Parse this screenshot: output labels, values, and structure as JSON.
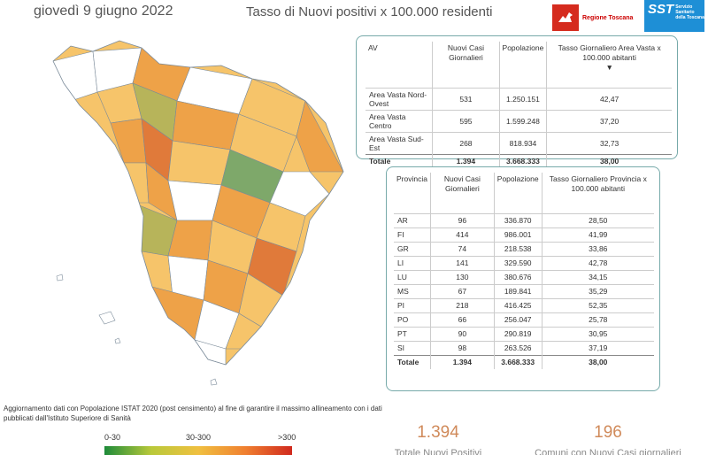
{
  "header": {
    "date": "giovedì 9 giugno 2022",
    "title": "Tasso di Nuovi positivi x 100.000 residenti",
    "logo_rt_text": "Regione Toscana",
    "logo_sst_big": "SST",
    "logo_sst_small": "Servizio Sanitario della Toscana"
  },
  "area_table": {
    "headers": [
      "AV",
      "Nuovi Casi Giornalieri",
      "Popolazione",
      "Tasso Giornaliero Area Vasta x 100.000 abitanti"
    ],
    "rows": [
      [
        "Area Vasta Nord-Ovest",
        "531",
        "1.250.151",
        "42,47"
      ],
      [
        "Area Vasta Centro",
        "595",
        "1.599.248",
        "37,20"
      ],
      [
        "Area Vasta Sud-Est",
        "268",
        "818.934",
        "32,73"
      ]
    ],
    "total": [
      "Totale",
      "1.394",
      "3.668.333",
      "38,00"
    ]
  },
  "province_table": {
    "headers": [
      "Provincia",
      "Nuovi Casi Giornalieri",
      "Popolazione",
      "Tasso Giornaliero Provincia x 100.000 abitanti"
    ],
    "rows": [
      [
        "AR",
        "96",
        "336.870",
        "28,50"
      ],
      [
        "FI",
        "414",
        "986.001",
        "41,99"
      ],
      [
        "GR",
        "74",
        "218.538",
        "33,86"
      ],
      [
        "LI",
        "141",
        "329.590",
        "42,78"
      ],
      [
        "LU",
        "130",
        "380.676",
        "34,15"
      ],
      [
        "MS",
        "67",
        "189.841",
        "35,29"
      ],
      [
        "PI",
        "218",
        "416.425",
        "52,35"
      ],
      [
        "PO",
        "66",
        "256.047",
        "25,78"
      ],
      [
        "PT",
        "90",
        "290.819",
        "30,95"
      ],
      [
        "SI",
        "98",
        "263.526",
        "37,19"
      ]
    ],
    "total": [
      "Totale",
      "1.394",
      "3.668.333",
      "38,00"
    ]
  },
  "note": "Aggiornamento dati con Popolazione ISTAT 2020 (post censimento) al fine di garantire il massimo allineamento con i dati pubblicati dall'Istituto Superiore di Sanità",
  "legend": {
    "low": "0-30",
    "mid": "30-300",
    "high": ">300",
    "colors": [
      "#1e8b3a",
      "#b9c93a",
      "#f0c040",
      "#f08030",
      "#d02a1e"
    ]
  },
  "kpis": {
    "total_positivi": "1.394",
    "total_positivi_label": "Totale Nuovi Positivi",
    "comuni": "196",
    "comuni_label": "Comuni con Nuovi Casi giornalieri"
  },
  "map_colors": {
    "white": "#ffffff",
    "light_orange": "#f6c46a",
    "orange": "#eea248",
    "dark_orange": "#e07a3a",
    "olive": "#b7b45a",
    "green": "#7ea86a",
    "border": "#7a8a99"
  }
}
